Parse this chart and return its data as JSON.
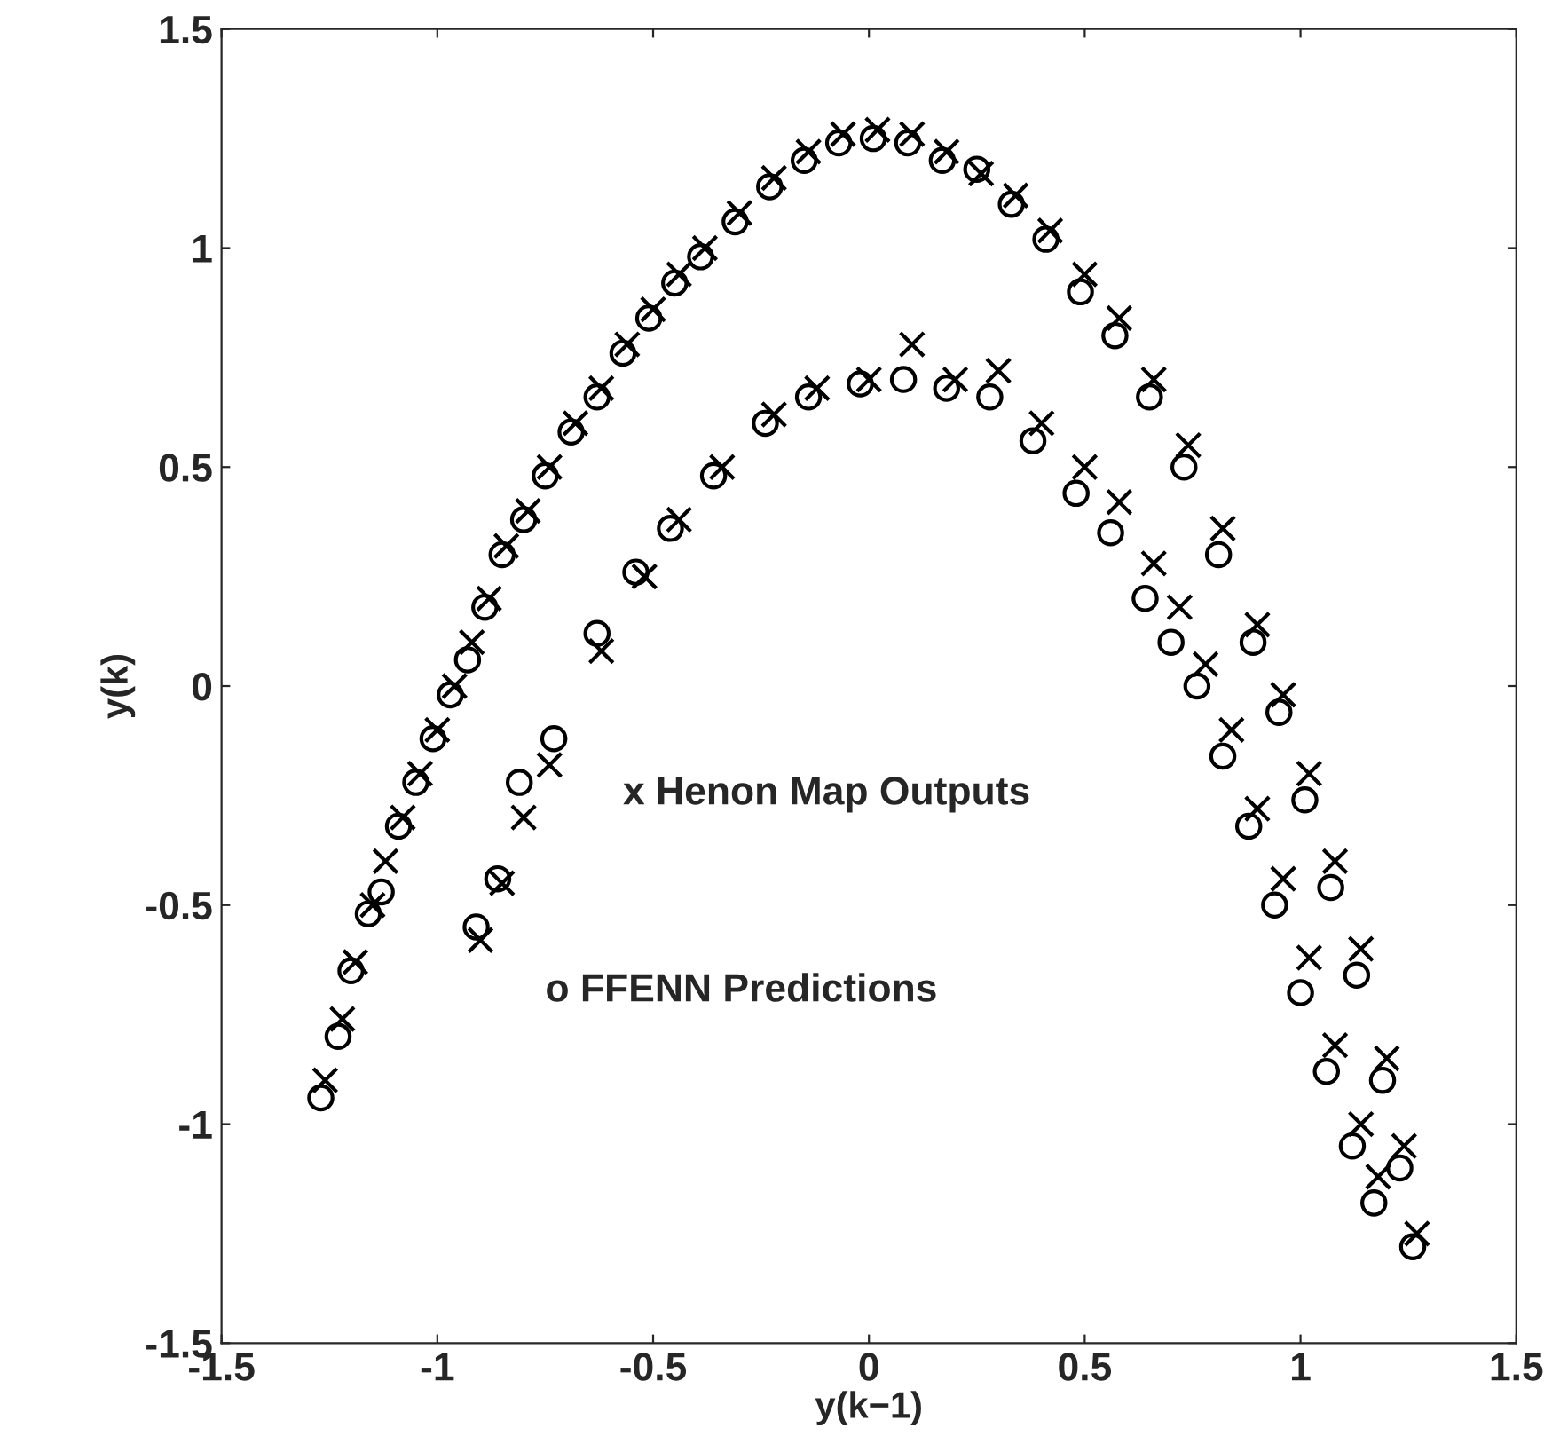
{
  "chart_data": {
    "type": "scatter",
    "xlabel": "y(k−1)",
    "ylabel": "y(k)",
    "xlim": [
      -1.5,
      1.5
    ],
    "ylim": [
      -1.5,
      1.5
    ],
    "xticks": [
      -1.5,
      -1,
      -0.5,
      0,
      0.5,
      1,
      1.5
    ],
    "yticks": [
      -1.5,
      -1,
      -0.5,
      0,
      0.5,
      1,
      1.5
    ],
    "grid": false,
    "annotations": [
      "x Henon Map Outputs",
      "o FFENN Predictions"
    ],
    "series": [
      {
        "color": "#000000",
        "marker": "cross",
        "x": [
          -1.26,
          -1.22,
          -1.19,
          -1.15,
          -1.12,
          -1.08,
          -1.04,
          -1.0,
          -0.96,
          -0.92,
          -0.88,
          -0.84,
          -0.79,
          -0.74,
          -0.68,
          -0.62,
          -0.56,
          -0.5,
          -0.44,
          -0.38,
          -0.3,
          -0.22,
          -0.14,
          -0.06,
          0.02,
          0.1,
          0.18,
          0.26,
          0.34,
          0.42,
          0.5,
          0.58,
          0.66,
          0.74,
          0.82,
          0.9,
          0.96,
          1.02,
          1.08,
          1.14,
          1.2,
          1.24,
          1.27,
          -0.9,
          -0.85,
          -0.8,
          -0.74,
          -0.62,
          -0.52,
          -0.44,
          -0.34,
          -0.22,
          -0.12,
          0.0,
          0.1,
          0.2,
          0.3,
          0.4,
          0.5,
          0.58,
          0.66,
          0.72,
          0.78,
          0.84,
          0.9,
          0.96,
          1.02,
          1.08,
          1.14,
          1.18
        ],
        "values": [
          -0.9,
          -0.76,
          -0.63,
          -0.5,
          -0.4,
          -0.3,
          -0.2,
          -0.1,
          0.0,
          0.1,
          0.2,
          0.32,
          0.4,
          0.5,
          0.6,
          0.68,
          0.78,
          0.86,
          0.94,
          1.0,
          1.08,
          1.16,
          1.22,
          1.26,
          1.27,
          1.26,
          1.22,
          1.17,
          1.12,
          1.04,
          0.94,
          0.84,
          0.7,
          0.55,
          0.36,
          0.14,
          -0.02,
          -0.2,
          -0.4,
          -0.6,
          -0.85,
          -1.05,
          -1.25,
          -0.58,
          -0.45,
          -0.3,
          -0.18,
          0.08,
          0.25,
          0.38,
          0.5,
          0.62,
          0.68,
          0.7,
          0.78,
          0.7,
          0.72,
          0.6,
          0.5,
          0.42,
          0.28,
          0.18,
          0.05,
          -0.1,
          -0.28,
          -0.44,
          -0.62,
          -0.82,
          -1.0,
          -1.12
        ]
      },
      {
        "color": "#000000",
        "marker": "circle",
        "x": [
          -1.27,
          -1.23,
          -1.2,
          -1.16,
          -1.13,
          -1.09,
          -1.05,
          -1.01,
          -0.97,
          -0.93,
          -0.89,
          -0.85,
          -0.8,
          -0.75,
          -0.69,
          -0.63,
          -0.57,
          -0.51,
          -0.45,
          -0.39,
          -0.31,
          -0.23,
          -0.15,
          -0.07,
          0.01,
          0.09,
          0.17,
          0.25,
          0.33,
          0.41,
          0.49,
          0.57,
          0.65,
          0.73,
          0.81,
          0.89,
          0.95,
          1.01,
          1.07,
          1.13,
          1.19,
          1.23,
          1.26,
          -0.91,
          -0.86,
          -0.81,
          -0.73,
          -0.63,
          -0.54,
          -0.46,
          -0.36,
          -0.24,
          -0.14,
          -0.02,
          0.08,
          0.18,
          0.28,
          0.38,
          0.48,
          0.56,
          0.64,
          0.7,
          0.76,
          0.82,
          0.88,
          0.94,
          1.0,
          1.06,
          1.12,
          1.17
        ],
        "values": [
          -0.94,
          -0.8,
          -0.65,
          -0.52,
          -0.47,
          -0.32,
          -0.22,
          -0.12,
          -0.02,
          0.06,
          0.18,
          0.3,
          0.38,
          0.48,
          0.58,
          0.66,
          0.76,
          0.84,
          0.92,
          0.98,
          1.06,
          1.14,
          1.2,
          1.24,
          1.25,
          1.24,
          1.2,
          1.18,
          1.1,
          1.02,
          0.9,
          0.8,
          0.66,
          0.5,
          0.3,
          0.1,
          -0.06,
          -0.26,
          -0.46,
          -0.66,
          -0.9,
          -1.1,
          -1.28,
          -0.55,
          -0.44,
          -0.22,
          -0.12,
          0.12,
          0.26,
          0.36,
          0.48,
          0.6,
          0.66,
          0.69,
          0.7,
          0.68,
          0.66,
          0.56,
          0.44,
          0.35,
          0.2,
          0.1,
          0.0,
          -0.16,
          -0.32,
          -0.5,
          -0.7,
          -0.88,
          -1.05,
          -1.18
        ]
      }
    ]
  }
}
